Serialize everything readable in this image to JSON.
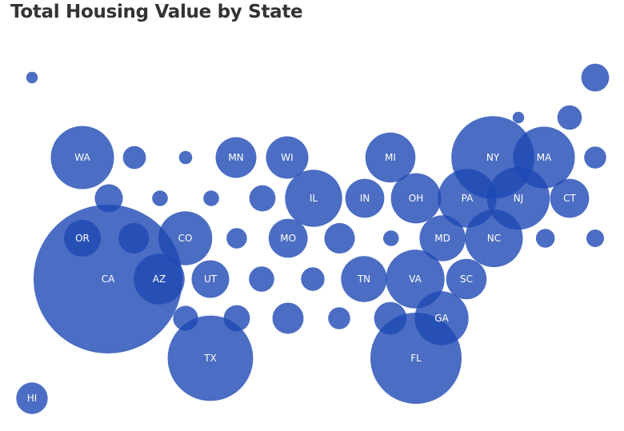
{
  "chart_data": {
    "type": "bubble-tile-map",
    "title": "Total Housing Value by State",
    "bubble_color": "#1E48B4",
    "bubble_opacity": 0.8,
    "note": "Bubble area encodes total housing value; states arranged in a tile-grid map. Values are relative sizes estimated from bubble radii (CA = 100).",
    "states": [
      {
        "label": "",
        "col": 0,
        "row": 0,
        "value": 0.6
      },
      {
        "label": "",
        "col": 14,
        "row": 0,
        "value": 3.5
      },
      {
        "label": "",
        "col": 12,
        "row": 1,
        "value": 0.6
      },
      {
        "label": "",
        "col": 13,
        "row": 1,
        "value": 2.7
      },
      {
        "label": "WA",
        "col": 1,
        "row": 2,
        "value": 18
      },
      {
        "label": "",
        "col": 2,
        "row": 2,
        "value": 2.4
      },
      {
        "label": "",
        "col": 3,
        "row": 2,
        "value": 0.8
      },
      {
        "label": "MN",
        "col": 4,
        "row": 2,
        "value": 7.5
      },
      {
        "label": "WI",
        "col": 5,
        "row": 2,
        "value": 8.1
      },
      {
        "label": "MI",
        "col": 7,
        "row": 2,
        "value": 11.3
      },
      {
        "label": "NY",
        "col": 9,
        "row": 2,
        "value": 31
      },
      {
        "label": "MA",
        "col": 10,
        "row": 2,
        "value": 17.2
      },
      {
        "label": "",
        "col": 11,
        "row": 2,
        "value": 2.2
      },
      {
        "label": "",
        "col": 1,
        "row": 3,
        "value": 3.6
      },
      {
        "label": "",
        "col": 2,
        "row": 3,
        "value": 1.1
      },
      {
        "label": "",
        "col": 3,
        "row": 3,
        "value": 1.1
      },
      {
        "label": "",
        "col": 4,
        "row": 3,
        "value": 3.1
      },
      {
        "label": "IL",
        "col": 5,
        "row": 3,
        "value": 14.7
      },
      {
        "label": "IN",
        "col": 6,
        "row": 3,
        "value": 6.9
      },
      {
        "label": "OH",
        "col": 7,
        "row": 3,
        "value": 11.4
      },
      {
        "label": "PA",
        "col": 8,
        "row": 3,
        "value": 15.6
      },
      {
        "label": "NJ",
        "col": 9,
        "row": 3,
        "value": 17.8
      },
      {
        "label": "CT",
        "col": 10,
        "row": 3,
        "value": 6.9
      },
      {
        "label": "OR",
        "col": 1,
        "row": 4,
        "value": 6.1
      },
      {
        "label": "",
        "col": 2,
        "row": 4,
        "value": 4.2
      },
      {
        "label": "CO",
        "col": 3,
        "row": 4,
        "value": 13.1
      },
      {
        "label": "",
        "col": 4,
        "row": 4,
        "value": 1.9
      },
      {
        "label": "MO",
        "col": 5,
        "row": 4,
        "value": 6.9
      },
      {
        "label": "",
        "col": 6,
        "row": 4,
        "value": 4.2
      },
      {
        "label": "",
        "col": 7,
        "row": 4,
        "value": 1.1
      },
      {
        "label": "MD",
        "col": 8,
        "row": 4,
        "value": 9.5
      },
      {
        "label": "NC",
        "col": 9,
        "row": 4,
        "value": 15.1
      },
      {
        "label": "",
        "col": 10,
        "row": 4,
        "value": 1.6
      },
      {
        "label": "",
        "col": 11,
        "row": 4,
        "value": 1.4
      },
      {
        "label": "CA",
        "col": 1,
        "row": 5,
        "value": 100
      },
      {
        "label": "AZ",
        "col": 2,
        "row": 5,
        "value": 11.7
      },
      {
        "label": "UT",
        "col": 3,
        "row": 5,
        "value": 6.4
      },
      {
        "label": "",
        "col": 4,
        "row": 5,
        "value": 2.9
      },
      {
        "label": "",
        "col": 5,
        "row": 5,
        "value": 2.5
      },
      {
        "label": "TN",
        "col": 6,
        "row": 5,
        "value": 9.5
      },
      {
        "label": "VA",
        "col": 7,
        "row": 5,
        "value": 15.6
      },
      {
        "label": "SC",
        "col": 8,
        "row": 5,
        "value": 7.4
      },
      {
        "label": "",
        "col": 3,
        "row": 6,
        "value": 2.8
      },
      {
        "label": "",
        "col": 4,
        "row": 6,
        "value": 3.1
      },
      {
        "label": "",
        "col": 5,
        "row": 6,
        "value": 4.4
      },
      {
        "label": "",
        "col": 6,
        "row": 6,
        "value": 2.2
      },
      {
        "label": "",
        "col": 7,
        "row": 6,
        "value": 4.8
      },
      {
        "label": "GA",
        "col": 8,
        "row": 6,
        "value": 13.1
      },
      {
        "label": "TX",
        "col": 4,
        "row": 7,
        "value": 33
      },
      {
        "label": "FL",
        "col": 7,
        "row": 7,
        "value": 37.5
      },
      {
        "label": "HI",
        "col": 0,
        "row": 8,
        "value": 4.5
      }
    ]
  }
}
